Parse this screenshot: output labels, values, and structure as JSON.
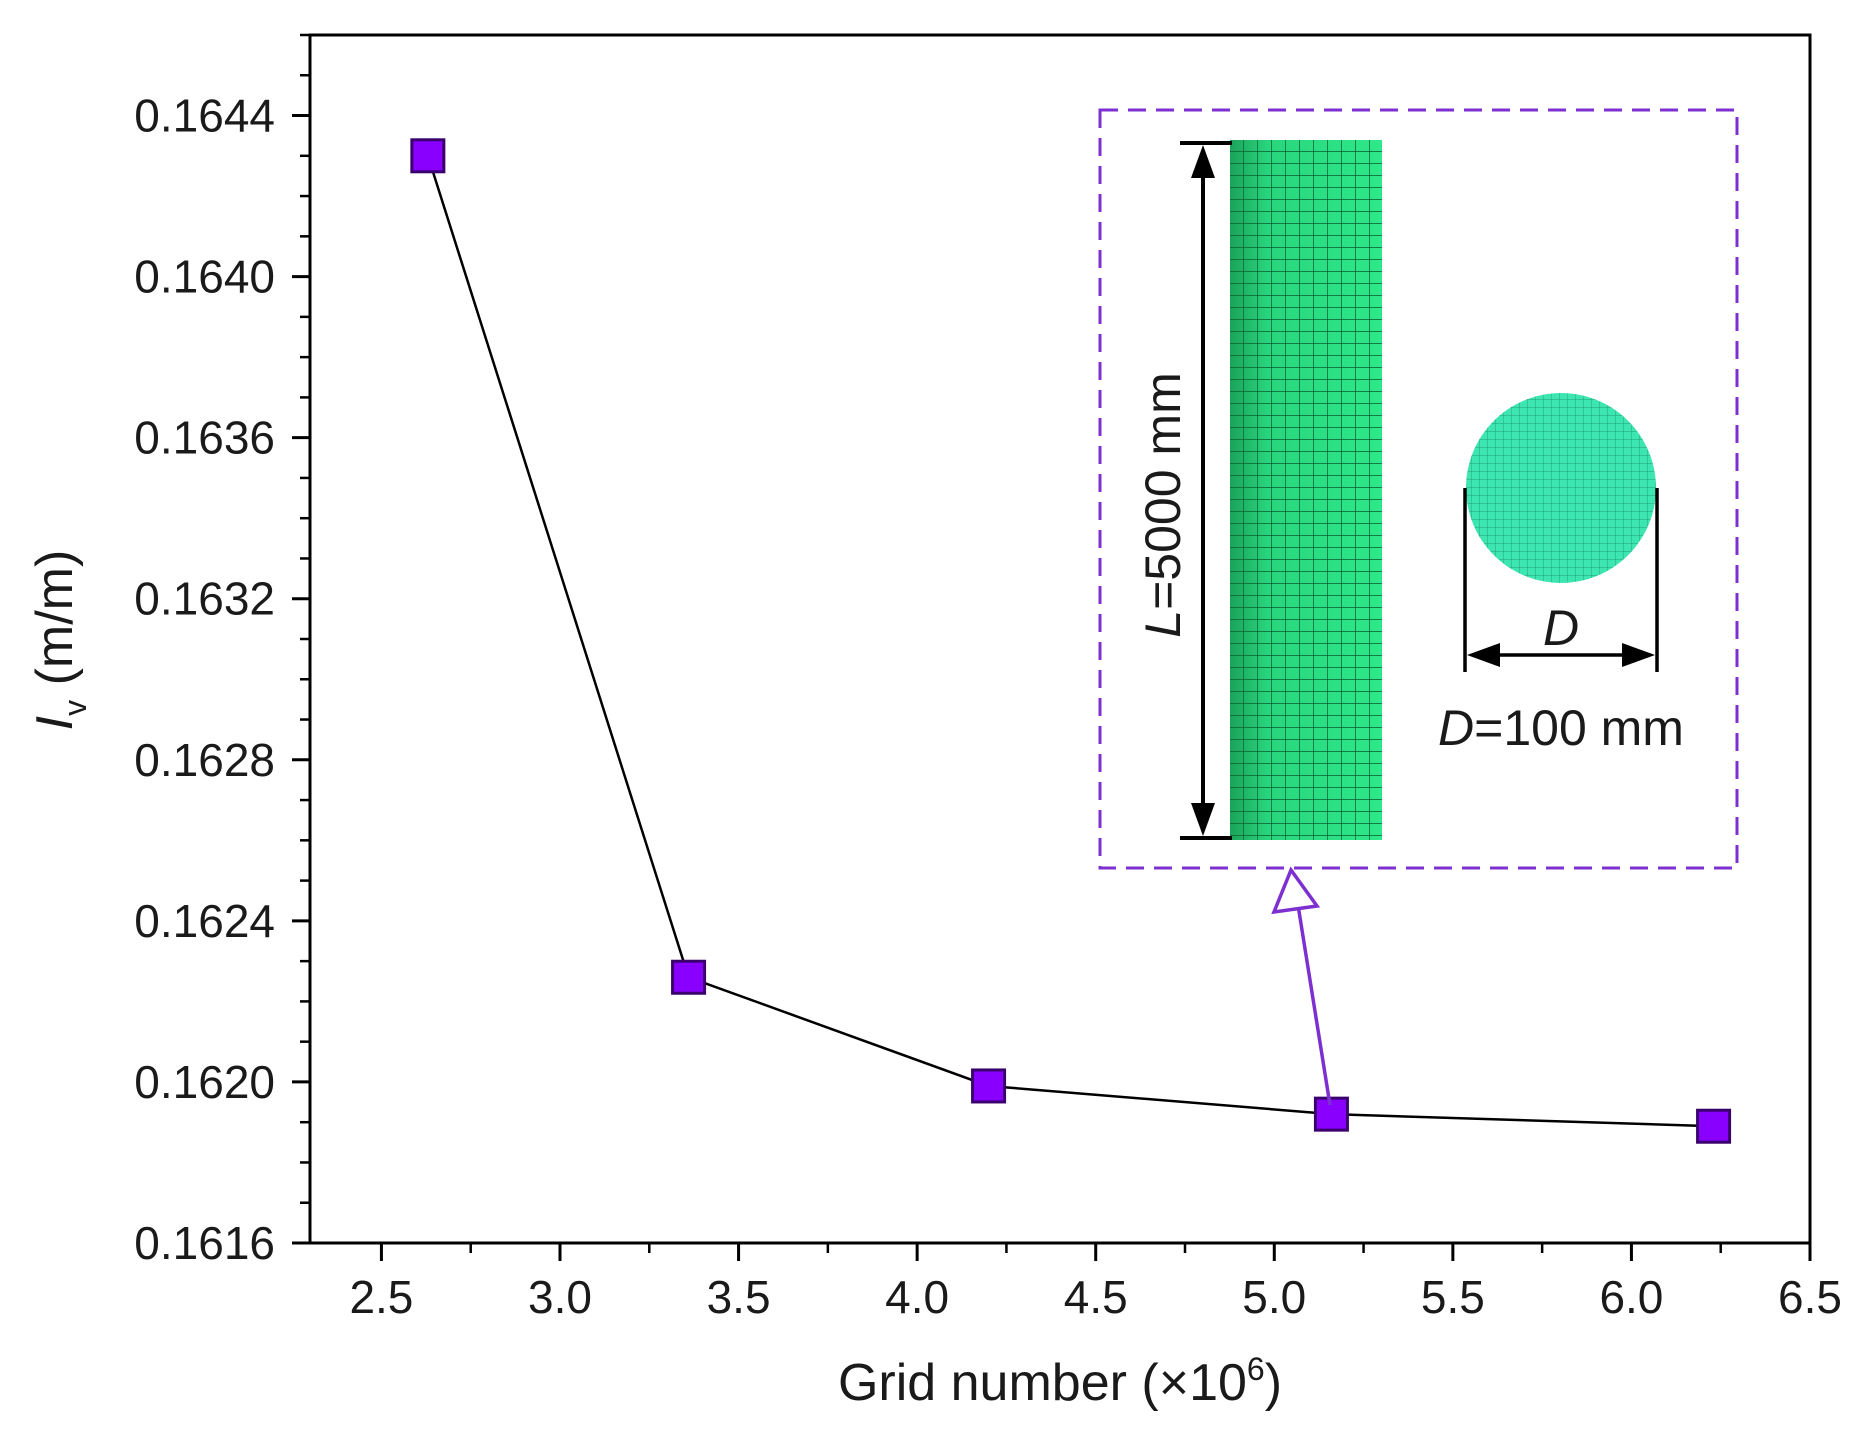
{
  "chart_data": {
    "type": "line",
    "x": [
      2.63,
      3.36,
      4.2,
      5.16,
      6.23
    ],
    "series": [
      {
        "name": "Iv",
        "values": [
          0.1643,
          0.16226,
          0.16199,
          0.16192,
          0.16189
        ]
      }
    ],
    "xlim": [
      2.3,
      6.5
    ],
    "ylim": [
      0.1616,
      0.1646
    ],
    "xticks": [
      "2.5",
      "3.0",
      "3.5",
      "4.0",
      "4.5",
      "5.0",
      "5.5",
      "6.0",
      "6.5"
    ],
    "yticks": [
      "0.1616",
      "0.1620",
      "0.1624",
      "0.1628",
      "0.1632",
      "0.1636",
      "0.1640",
      "0.1644"
    ],
    "xlabel": {
      "main": "Grid number (×10",
      "sup": "6",
      "end": ")"
    },
    "ylabel": {
      "symbol": "I",
      "sub": "v",
      "unit": " (m/m)"
    },
    "grid": false,
    "marker": "square",
    "colors": {
      "marker_fill": "#8a00ff",
      "marker_edge": "#3a006e",
      "line": "#000000",
      "inset_border": "#7d2fd0",
      "mesh": "#2ee88a",
      "arrow": "#7d2fd0"
    }
  },
  "inset": {
    "length_label": {
      "symbol": "L",
      "text": "=5000 mm"
    },
    "diameter_symbol": "D",
    "diameter_label": {
      "symbol": "D",
      "text": "=100 mm"
    }
  }
}
